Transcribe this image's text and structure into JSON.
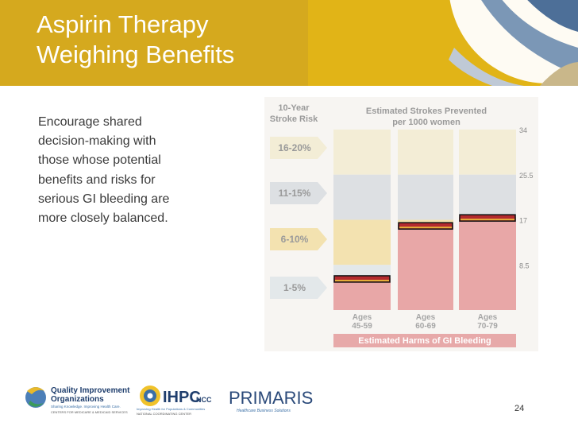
{
  "slide": {
    "title_lines": [
      "Aspirin Therapy",
      "Weighing Benefits"
    ],
    "body_lines": [
      "Encourage shared",
      "decision-making with",
      "those whose potential",
      "benefits and risks for",
      "serious GI bleeding are",
      "more closely balanced."
    ],
    "page_number": "24"
  },
  "chart_data": {
    "type": "bar",
    "title": "Estimated Strokes Prevented per 1000 women",
    "left_header": "10-Year Stroke Risk",
    "risk_bands": [
      "16-20%",
      "11-15%",
      "6-10%",
      "1-5%"
    ],
    "categories": [
      "Ages 45-59",
      "Ages 60-69",
      "Ages 70-79"
    ],
    "category_lines": [
      [
        "Ages",
        "45-59"
      ],
      [
        "Ages",
        "60-69"
      ],
      [
        "Ages",
        "70-79"
      ]
    ],
    "harm_values": [
      6,
      16,
      17.5
    ],
    "yticks": [
      "34",
      "25.5",
      "17",
      "8.5"
    ],
    "ylim": [
      0,
      34
    ],
    "footer_label": "Estimated Harms of GI Bleeding",
    "colors": {
      "band_top": "#f3edd6",
      "band_2": "#dde0e3",
      "band_3": "#f3e2b0",
      "band_4": "#e3e8ea",
      "harm": "#e8a7a7",
      "marker": "#b32a2e"
    }
  },
  "logos": {
    "qio_line1": "Quality Improvement",
    "qio_line2": "Organizations",
    "qio_tagline": "Sharing Knowledge. Improving Health Care.",
    "qio_sub": "CENTERS FOR MEDICARE & MEDICAID SERVICES",
    "ihpc": "IHPC",
    "ihpc_ncc": "NCC",
    "ihpc_tagline": "Improving Health for Populations & Communities",
    "ihpc_sub": "NATIONAL COORDINATING CENTER",
    "primaris": "PRIMARIS",
    "primaris_tagline": "Healthcare Business Solutions"
  }
}
